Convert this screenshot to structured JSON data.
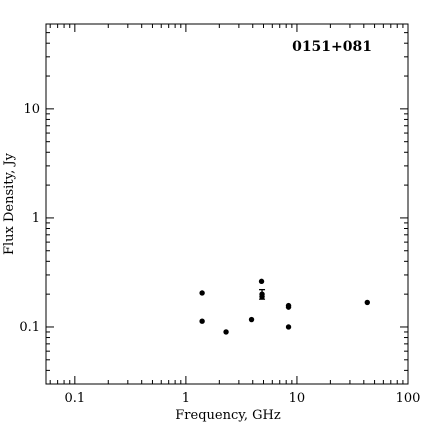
{
  "chart_data": {
    "type": "scatter",
    "title": "0151+081",
    "xlabel": "Frequency, GHz",
    "ylabel": "Flux Density, Jy",
    "xscale": "log",
    "yscale": "log",
    "xlim": [
      0.055,
      100
    ],
    "ylim": [
      0.03,
      60
    ],
    "xticks": [
      {
        "value": 0.1,
        "label": "0.1"
      },
      {
        "value": 1,
        "label": "1"
      },
      {
        "value": 10,
        "label": "10"
      },
      {
        "value": 100,
        "label": "100"
      }
    ],
    "yticks": [
      {
        "value": 0.1,
        "label": "0.1"
      },
      {
        "value": 1,
        "label": "1"
      },
      {
        "value": 10,
        "label": "10"
      }
    ],
    "grid": false,
    "legend": "none",
    "marker_color": "#000000",
    "points": [
      {
        "x": 1.4,
        "y": 0.205
      },
      {
        "x": 1.4,
        "y": 0.113
      },
      {
        "x": 2.3,
        "y": 0.09
      },
      {
        "x": 3.9,
        "y": 0.117
      },
      {
        "x": 4.8,
        "y": 0.262
      },
      {
        "x": 4.85,
        "y": 0.2,
        "yerr": 0.02
      },
      {
        "x": 4.85,
        "y": 0.19
      },
      {
        "x": 8.4,
        "y": 0.157
      },
      {
        "x": 8.4,
        "y": 0.152
      },
      {
        "x": 8.4,
        "y": 0.1
      },
      {
        "x": 43,
        "y": 0.168
      }
    ]
  }
}
